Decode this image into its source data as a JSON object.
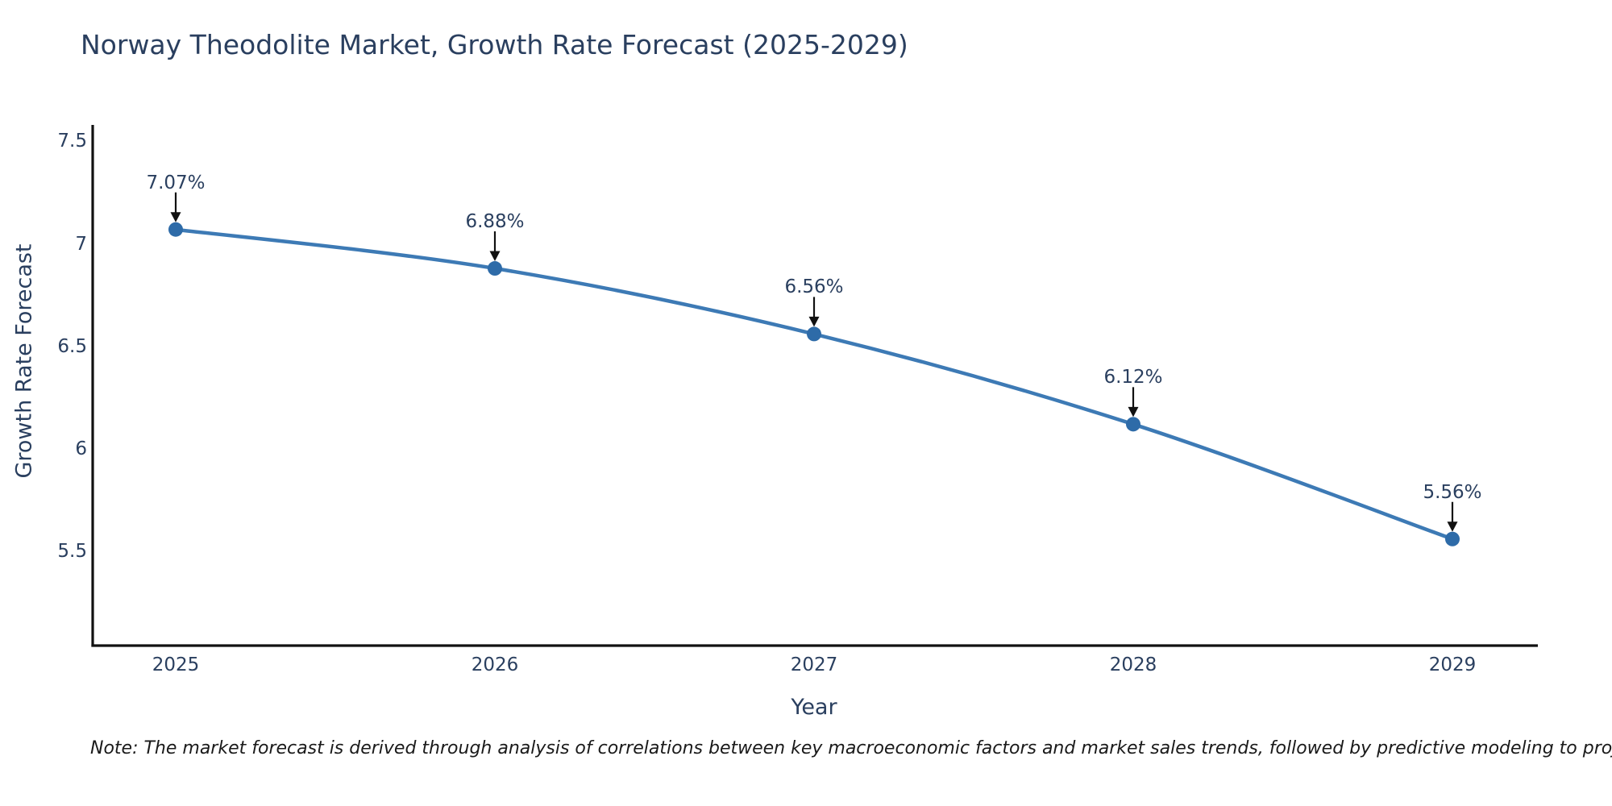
{
  "header": {
    "title": "Norway Theodolite Market, Growth Rate Forecast (2025-2029)"
  },
  "footnote": {
    "text": "Note: The market forecast is derived through analysis of correlations between key macroeconomic factors and market sales trends, followed by predictive modeling to project future sales"
  },
  "chart_data": {
    "type": "line",
    "title": "Norway Theodolite Market, Growth Rate Forecast (2025-2029)",
    "xlabel": "Year",
    "ylabel": "Growth Rate Forecast",
    "categories": [
      "2025",
      "2026",
      "2027",
      "2028",
      "2029"
    ],
    "series": [
      {
        "name": "Growth Rate Forecast",
        "values": [
          7.07,
          6.88,
          6.56,
          6.12,
          5.56
        ]
      }
    ],
    "point_labels": [
      "7.07%",
      "6.88%",
      "6.56%",
      "6.12%",
      "5.56%"
    ],
    "yticks": [
      7.5,
      7,
      6.5,
      6,
      5.5
    ],
    "ytick_labels": [
      "7.5",
      "7",
      "6.5",
      "6",
      "5.5"
    ],
    "ylim": [
      5.04,
      7.58
    ],
    "grid": false,
    "legend": "none",
    "line_shape": "spline",
    "colors": {
      "line": "#3d7ab5",
      "marker": "#2e6ba8",
      "axis": "#111111",
      "arrow": "#111111",
      "text": "#2a3f5f",
      "note_text": "#1a1a1a"
    }
  }
}
